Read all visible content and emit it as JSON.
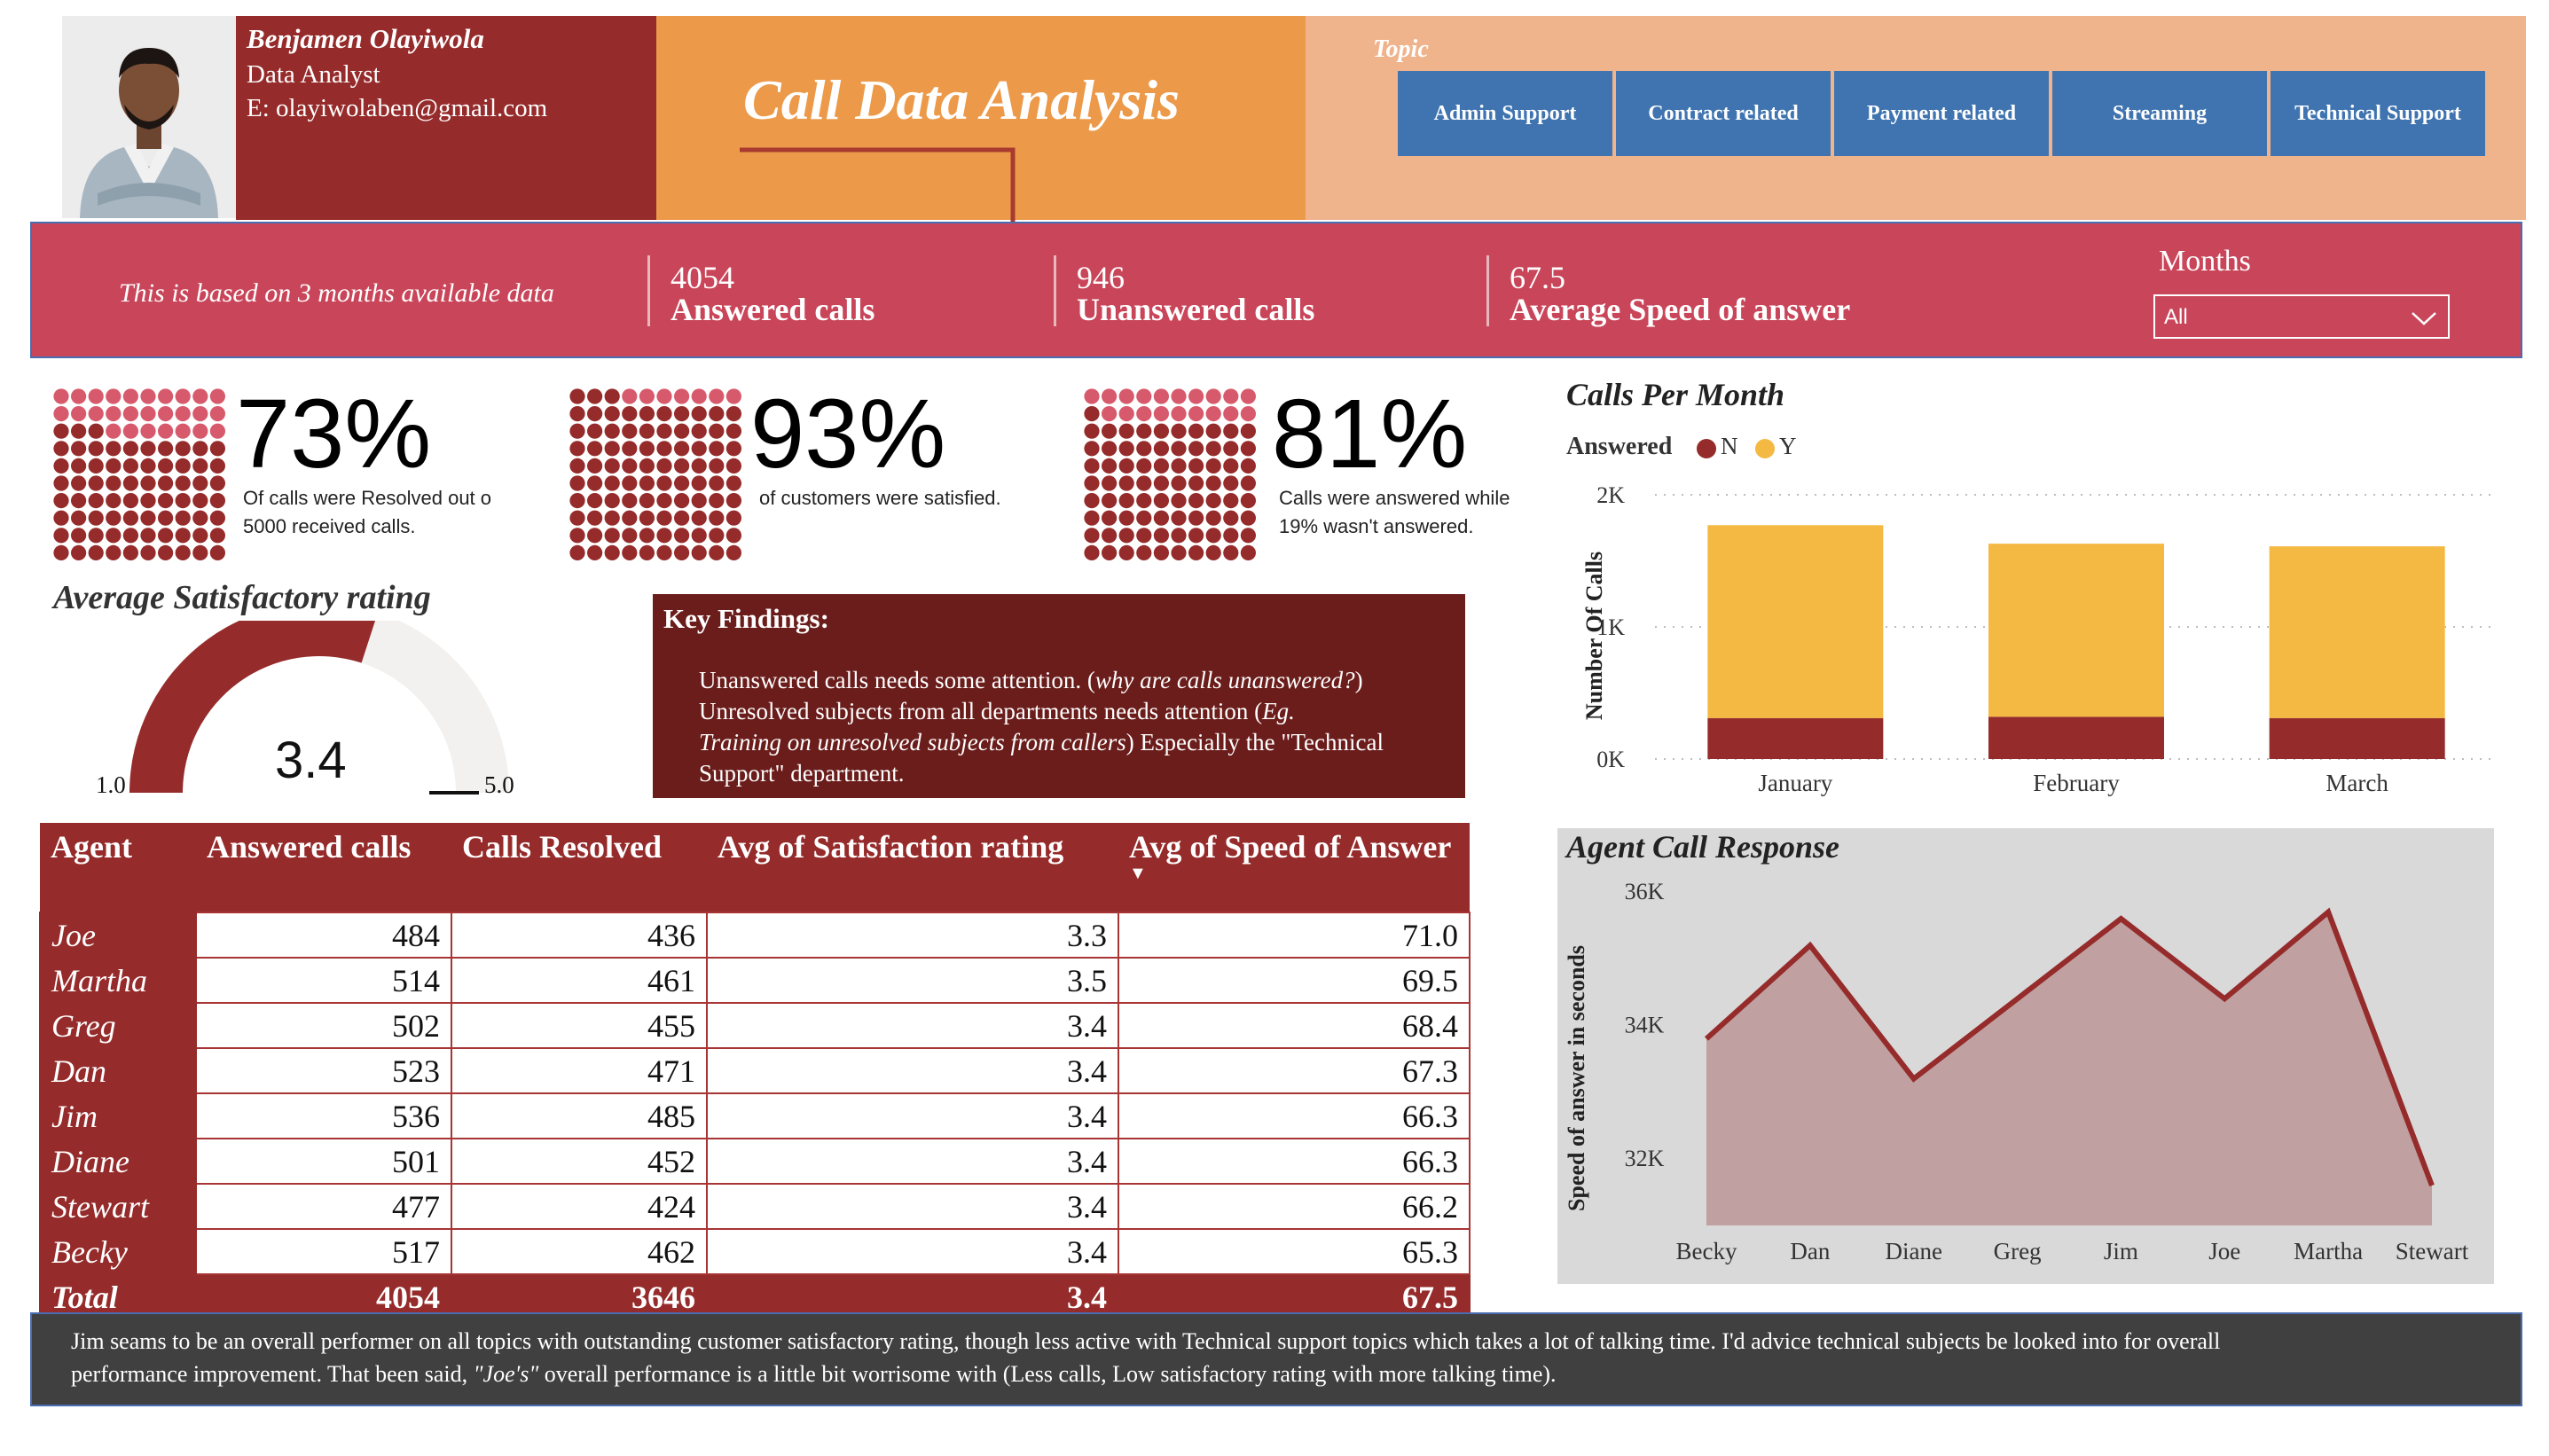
{
  "profile": {
    "name": "Benjamen Olayiwola",
    "role": "Data Analyst",
    "email": "E: olayiwolaben@gmail.com"
  },
  "header": {
    "title": "Call Data Analysis",
    "topic_label": "Topic",
    "topics": [
      "Admin Support",
      "Contract related",
      "Payment related",
      "Streaming",
      "Technical Support"
    ]
  },
  "kpis": {
    "note": "This is based on 3 months available data",
    "answered_value": "4054",
    "answered_label": "Answered calls",
    "unanswered_value": "946",
    "unanswered_label": "Unanswered calls",
    "speed_value": "67.5",
    "speed_label": "Average Speed of answer",
    "months_label": "Months",
    "months_selected": "All"
  },
  "colors": {
    "dark_red": "#952b2a",
    "light_red": "#d75a6c",
    "gold": "#f4b942",
    "blue": "#3f74b0"
  },
  "waffles": [
    {
      "pct": "73%",
      "value": 0.73,
      "caption1": "Of calls were Resolved out o",
      "caption2": "5000 received calls."
    },
    {
      "pct": "93%",
      "value": 0.93,
      "caption1": "of customers were satisfied.",
      "caption2": ""
    },
    {
      "pct": "81%",
      "value": 0.81,
      "caption1": "Calls were answered while",
      "caption2": "19% wasn't answered."
    }
  ],
  "gauge": {
    "title": "Average Satisfactory rating",
    "value": "3.4",
    "value_num": 3.4,
    "min": "1.0",
    "max": "5.0",
    "min_num": 1.0,
    "max_num": 5.0
  },
  "key_findings": {
    "title": "Key Findings:",
    "line1": "Unanswered calls needs some attention. (",
    "line1_italic": "why are calls unanswered?",
    "line1_end": ")",
    "line2": "Unresolved subjects from all departments needs attention (",
    "line2_italic_a": "Eg.",
    "line3_italic": "Training on unresolved subjects from callers",
    "line3_end": ") Especially the \"Technical",
    "line4": "Support\" department."
  },
  "table": {
    "headers": [
      "Agent",
      "Answered calls",
      "Calls Resolved",
      "Avg of Satisfaction rating",
      "Avg of Speed of Answer"
    ],
    "sort_indicator": "▼",
    "rows": [
      [
        "Joe",
        "484",
        "436",
        "3.3",
        "71.0"
      ],
      [
        "Martha",
        "514",
        "461",
        "3.5",
        "69.5"
      ],
      [
        "Greg",
        "502",
        "455",
        "3.4",
        "68.4"
      ],
      [
        "Dan",
        "523",
        "471",
        "3.4",
        "67.3"
      ],
      [
        "Jim",
        "536",
        "485",
        "3.4",
        "66.3"
      ],
      [
        "Diane",
        "501",
        "452",
        "3.4",
        "66.3"
      ],
      [
        "Stewart",
        "477",
        "424",
        "3.4",
        "66.2"
      ],
      [
        "Becky",
        "517",
        "462",
        "3.4",
        "65.3"
      ]
    ],
    "total": [
      "Total",
      "4054",
      "3646",
      "3.4",
      "67.5"
    ]
  },
  "chart_data": [
    {
      "type": "bar",
      "title": "Calls Per Month",
      "legend_title": "Answered",
      "legend_position": "top-left",
      "ylabel": "Number Of Calls",
      "xlabel": "",
      "categories": [
        "January",
        "February",
        "March"
      ],
      "stacked": true,
      "series": [
        {
          "name": "N",
          "color": "#952b2a",
          "values": [
            310,
            320,
            310
          ]
        },
        {
          "name": "Y",
          "color": "#f4b942",
          "values": [
            1460,
            1310,
            1300
          ]
        }
      ],
      "ylim": [
        0,
        2000
      ],
      "yticks": [
        0,
        1000,
        2000
      ],
      "ytick_labels": [
        "0K",
        "1K",
        "2K"
      ],
      "grid": true
    },
    {
      "type": "area",
      "title": "Agent Call Response",
      "ylabel": "Speed of answer in seconds",
      "xlabel": "",
      "categories": [
        "Becky",
        "Dan",
        "Diane",
        "Greg",
        "Jim",
        "Joe",
        "Martha",
        "Stewart"
      ],
      "series": [
        {
          "name": "",
          "color": "#952b2a",
          "values": [
            33800,
            35200,
            33200,
            34400,
            35600,
            34400,
            35700,
            31600
          ]
        }
      ],
      "ylim": [
        31000,
        36000
      ],
      "yticks": [
        32000,
        34000,
        36000
      ],
      "ytick_labels": [
        "32K",
        "34K",
        "36K"
      ],
      "grid": false
    }
  ],
  "bottom_note": {
    "text1": "Jim seams to be an overall performer on all topics with outstanding customer satisfactory rating, though less active with Technical support topics which takes a lot of talking time. I'd advice technical subjects be looked into for overall",
    "text2": "performance improvement. That been said, ",
    "text2_italic": "\"Joe's\"",
    "text2_end": " overall performance is a little bit worrisome with (Less calls, Low satisfactory rating with more talking time)."
  }
}
